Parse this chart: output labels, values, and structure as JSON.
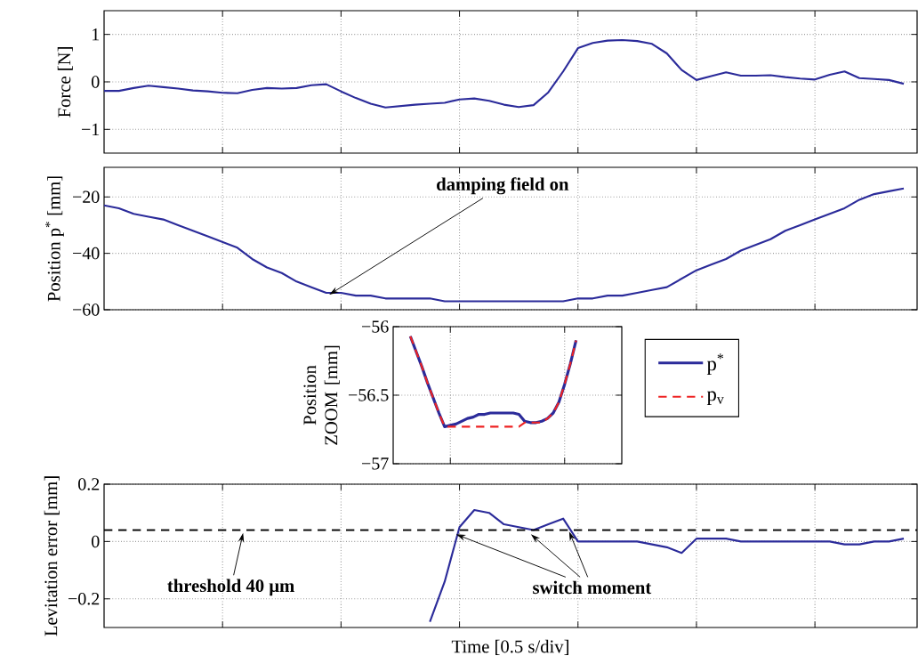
{
  "chart_data": [
    {
      "type": "line",
      "ylabel": "Force [N]",
      "ylim": [
        -1.5,
        1.5
      ],
      "categories": [
        null,
        null,
        null,
        null,
        null,
        null,
        null,
        null,
        null,
        null,
        null,
        null,
        null,
        null,
        null,
        null,
        null,
        null,
        null,
        null,
        null,
        null,
        null,
        null,
        null,
        null,
        null,
        null,
        null,
        null,
        null,
        null,
        null,
        null,
        null,
        null,
        null,
        null,
        null,
        null,
        null,
        null,
        null,
        null,
        null,
        null,
        null,
        null,
        null,
        null,
        null,
        null,
        null,
        null,
        null
      ],
      "yticks": [
        {
          "value": -1,
          "label": "−1"
        },
        0,
        1
      ],
      "grid": true,
      "series": [
        {
          "color": "#2b2b9a",
          "values": [
            -0.19,
            -0.19,
            -0.13,
            -0.08,
            -0.11,
            -0.14,
            -0.18,
            -0.2,
            -0.23,
            -0.24,
            -0.17,
            -0.13,
            -0.14,
            -0.13,
            -0.07,
            -0.05,
            -0.2,
            -0.34,
            -0.46,
            -0.54,
            -0.51,
            -0.48,
            -0.46,
            -0.44,
            -0.37,
            -0.35,
            -0.4,
            -0.48,
            -0.53,
            -0.49,
            -0.22,
            0.22,
            0.71,
            0.82,
            0.87,
            0.88,
            0.86,
            0.8,
            0.6,
            0.25,
            0.04,
            0.12,
            0.2,
            0.13,
            0.13,
            0.14,
            0.1,
            0.07,
            0.05,
            0.15,
            0.22,
            0.08,
            0.06,
            0.04,
            -0.04
          ]
        }
      ]
    },
    {
      "type": "line",
      "ylabel": "Position p$^{*}$ [mm]",
      "ylim": [
        -60,
        -9.5
      ],
      "categories": [
        null,
        null,
        null,
        null,
        null,
        null,
        null,
        null,
        null,
        null,
        null,
        null,
        null,
        null,
        null,
        null,
        null,
        null,
        null,
        null,
        null,
        null,
        null,
        null,
        null,
        null,
        null,
        null,
        null,
        null,
        null,
        null,
        null,
        null,
        null,
        null,
        null,
        null,
        null,
        null,
        null,
        null,
        null,
        null,
        null,
        null,
        null,
        null,
        null,
        null,
        null,
        null,
        null,
        null,
        null
      ],
      "yticks": [
        {
          "value": -60,
          "label": "−60"
        },
        {
          "value": -40,
          "label": "−40"
        },
        {
          "value": -20,
          "label": "−20"
        }
      ],
      "grid": true,
      "annotations": [
        "damping field on"
      ],
      "series": [
        {
          "color": "#2b2b9a",
          "values": [
            -23,
            -24,
            -26,
            -27,
            -28,
            -30,
            -32,
            -34,
            -36,
            -38,
            -42,
            -45,
            -47,
            -50,
            -52,
            -54,
            -54,
            -55,
            -55,
            -56,
            -56,
            -56,
            -56,
            -57,
            -57,
            -57,
            -57,
            -57,
            -57,
            -57,
            -57,
            -57,
            -56,
            -56,
            -55,
            -55,
            -54,
            -53,
            -52,
            -49,
            -46,
            -44,
            -42,
            -39,
            -37,
            -35,
            -32,
            -30,
            -28,
            -26,
            -24,
            -21,
            -19,
            -18,
            -17
          ]
        }
      ]
    },
    {
      "type": "line",
      "ylabel": "Position ZOOM [mm]",
      "ylim": [
        -57,
        -56
      ],
      "categories": [
        null,
        null,
        null,
        null,
        null,
        null,
        null,
        null,
        null,
        null,
        null,
        null,
        null,
        null,
        null,
        null,
        null,
        null,
        null,
        null,
        null,
        null,
        null,
        null,
        null,
        null,
        null,
        null,
        null,
        null,
        null,
        null,
        null,
        null,
        null,
        null,
        null,
        null,
        null,
        null,
        null
      ],
      "yticks": [
        {
          "value": -57,
          "label": "−57"
        },
        {
          "value": -56.5,
          "label": "−56.5"
        },
        {
          "value": -56,
          "label": "−56"
        }
      ],
      "grid": true,
      "legend": "right",
      "series": [
        {
          "name": "p$^{*}$",
          "color": "#2b2b9a",
          "line_style": "solid",
          "values": [
            null,
            null,
            null,
            -56.07,
            -56.18,
            -56.29,
            -56.41,
            -56.52,
            -56.63,
            -56.73,
            -56.72,
            -56.71,
            -56.69,
            -56.67,
            -56.66,
            -56.64,
            -56.64,
            -56.63,
            -56.63,
            -56.63,
            -56.63,
            -56.63,
            -56.64,
            -56.69,
            -56.7,
            -56.7,
            -56.69,
            -56.67,
            -56.63,
            -56.55,
            -56.42,
            -56.27,
            -56.1,
            null,
            null,
            null,
            null,
            null,
            null,
            null,
            null
          ]
        },
        {
          "name": "p$_{v}$",
          "color": "#ee2222",
          "line_style": "dashed",
          "values": [
            null,
            null,
            null,
            -56.07,
            -56.18,
            -56.29,
            -56.41,
            -56.52,
            -56.63,
            -56.73,
            -56.73,
            -56.73,
            -56.73,
            -56.73,
            -56.73,
            -56.73,
            -56.73,
            -56.73,
            -56.73,
            -56.73,
            -56.73,
            -56.73,
            -56.73,
            -56.7,
            -56.7,
            -56.7,
            -56.7,
            -56.67,
            -56.63,
            -56.55,
            -56.42,
            -56.27,
            -56.1,
            null,
            null,
            null,
            null,
            null,
            null,
            null,
            null
          ]
        }
      ]
    },
    {
      "type": "line",
      "ylabel": "Levitation error [mm]",
      "xlabel": "Time [0.5 s/div]",
      "ylim": [
        -0.3,
        0.2
      ],
      "categories": [
        null,
        null,
        null,
        null,
        null,
        null,
        null,
        null,
        null,
        null,
        null,
        null,
        null,
        null,
        null,
        null,
        null,
        null,
        null,
        null,
        null,
        null,
        null,
        null,
        null,
        null,
        null,
        null,
        null,
        null,
        null,
        null,
        null,
        null,
        null,
        null,
        null,
        null,
        null,
        null,
        null,
        null,
        null,
        null,
        null,
        null,
        null,
        null,
        null,
        null,
        null,
        null,
        null,
        null,
        null
      ],
      "yticks": [
        {
          "value": -0.2,
          "label": "−0.2"
        },
        0,
        0.2
      ],
      "grid": true,
      "ref_lines": [
        {
          "axis": "y",
          "value": 0.04,
          "color": "#000000",
          "line_style": "dashed"
        }
      ],
      "annotations": [
        "threshold 40 μm",
        "switch moment"
      ],
      "series": [
        {
          "color": "#2b2b9a",
          "values": [
            null,
            null,
            null,
            null,
            null,
            null,
            null,
            null,
            null,
            null,
            null,
            null,
            null,
            null,
            null,
            null,
            null,
            null,
            null,
            null,
            null,
            null,
            -0.28,
            -0.14,
            0.05,
            0.11,
            0.1,
            0.06,
            0.05,
            0.04,
            0.06,
            0.08,
            0.0,
            0.0,
            0.0,
            0.0,
            0.0,
            -0.01,
            -0.02,
            -0.04,
            0.01,
            0.01,
            0.01,
            0.0,
            0.0,
            0.0,
            0.0,
            0.0,
            0.0,
            0.0,
            -0.01,
            -0.01,
            0.0,
            0.0,
            0.01
          ]
        }
      ]
    }
  ]
}
